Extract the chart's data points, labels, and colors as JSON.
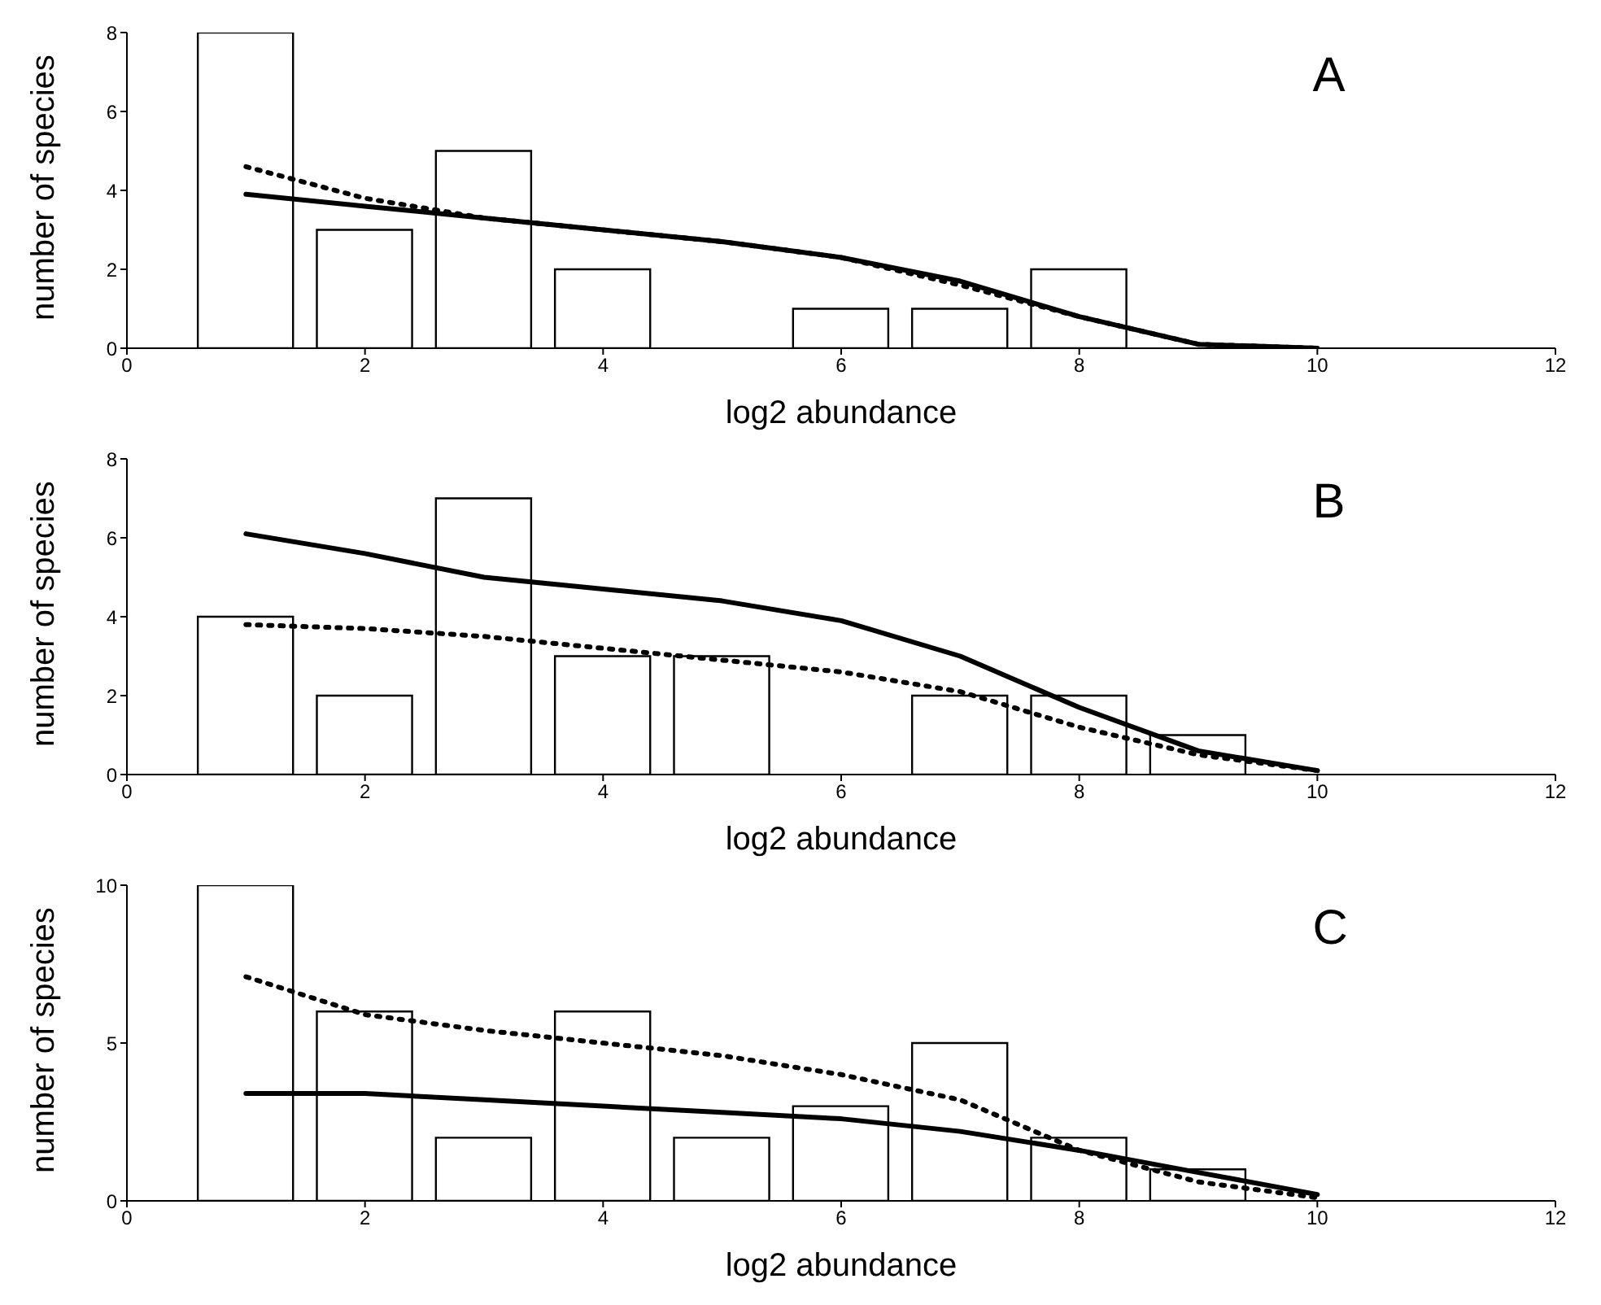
{
  "chart_data": [
    {
      "type": "bar",
      "xlabel": "log2 abundance",
      "ylabel": "number of species",
      "annotations": [
        "A"
      ],
      "xlim": [
        0,
        12
      ],
      "xticks": [
        0,
        2,
        4,
        6,
        8,
        10,
        12
      ],
      "ylim": [
        0,
        8
      ],
      "yticks": [
        0,
        2,
        4,
        6,
        8
      ],
      "grid": false,
      "legend": false,
      "series": [
        {
          "color": "#ffffff",
          "x": [
            1,
            2,
            3,
            4,
            6,
            7,
            8
          ],
          "values": [
            8,
            3,
            5,
            2,
            1,
            1,
            2
          ]
        },
        {
          "type": "line",
          "color": "#000000",
          "line_style": "solid",
          "x": [
            1,
            2,
            3,
            4,
            5,
            6,
            7,
            8,
            9,
            10
          ],
          "values": [
            3.9,
            3.6,
            3.3,
            3.0,
            2.7,
            2.3,
            1.7,
            0.8,
            0.1,
            0.0
          ]
        },
        {
          "type": "line",
          "color": "#000000",
          "line_style": "dotted",
          "x": [
            1,
            2,
            3,
            4,
            5,
            6,
            7,
            8,
            9,
            10
          ],
          "values": [
            4.6,
            3.8,
            3.3,
            3.0,
            2.7,
            2.3,
            1.6,
            0.8,
            0.1,
            0.0
          ]
        }
      ]
    },
    {
      "type": "bar",
      "xlabel": "log2 abundance",
      "ylabel": "number of species",
      "annotations": [
        "B"
      ],
      "xlim": [
        0,
        12
      ],
      "xticks": [
        0,
        2,
        4,
        6,
        8,
        10,
        12
      ],
      "ylim": [
        0,
        8
      ],
      "yticks": [
        0,
        2,
        4,
        6,
        8
      ],
      "grid": false,
      "legend": false,
      "series": [
        {
          "color": "#ffffff",
          "x": [
            1,
            2,
            3,
            4,
            5,
            7,
            8,
            9
          ],
          "values": [
            4,
            2,
            7,
            3,
            3,
            2,
            2,
            1
          ]
        },
        {
          "type": "line",
          "color": "#000000",
          "line_style": "solid",
          "x": [
            1,
            2,
            3,
            4,
            5,
            6,
            7,
            8,
            9,
            10
          ],
          "values": [
            6.1,
            5.6,
            5.0,
            4.7,
            4.4,
            3.9,
            3.0,
            1.7,
            0.6,
            0.1
          ]
        },
        {
          "type": "line",
          "color": "#000000",
          "line_style": "dotted",
          "x": [
            1,
            2,
            3,
            4,
            5,
            6,
            7,
            8,
            9,
            10
          ],
          "values": [
            3.8,
            3.7,
            3.5,
            3.2,
            2.9,
            2.6,
            2.1,
            1.2,
            0.5,
            0.1
          ]
        }
      ]
    },
    {
      "type": "bar",
      "xlabel": "log2 abundance",
      "ylabel": "number of species",
      "annotations": [
        "C"
      ],
      "xlim": [
        0,
        12
      ],
      "xticks": [
        0,
        2,
        4,
        6,
        8,
        10,
        12
      ],
      "ylim": [
        0,
        10
      ],
      "yticks": [
        0,
        5,
        10
      ],
      "grid": false,
      "legend": false,
      "series": [
        {
          "color": "#ffffff",
          "x": [
            1,
            2,
            3,
            4,
            5,
            6,
            7,
            8,
            9
          ],
          "values": [
            10,
            6,
            2,
            6,
            2,
            3,
            5,
            2,
            1
          ]
        },
        {
          "type": "line",
          "color": "#000000",
          "line_style": "solid",
          "x": [
            1,
            2,
            3,
            4,
            5,
            6,
            7,
            8,
            9,
            10
          ],
          "values": [
            3.4,
            3.4,
            3.2,
            3.0,
            2.8,
            2.6,
            2.2,
            1.6,
            0.9,
            0.2
          ]
        },
        {
          "type": "line",
          "color": "#000000",
          "line_style": "dotted",
          "x": [
            1,
            2,
            3,
            4,
            5,
            6,
            7,
            8,
            9,
            10
          ],
          "values": [
            7.1,
            5.9,
            5.4,
            5.0,
            4.6,
            4.0,
            3.2,
            1.6,
            0.6,
            0.1
          ]
        }
      ]
    }
  ]
}
